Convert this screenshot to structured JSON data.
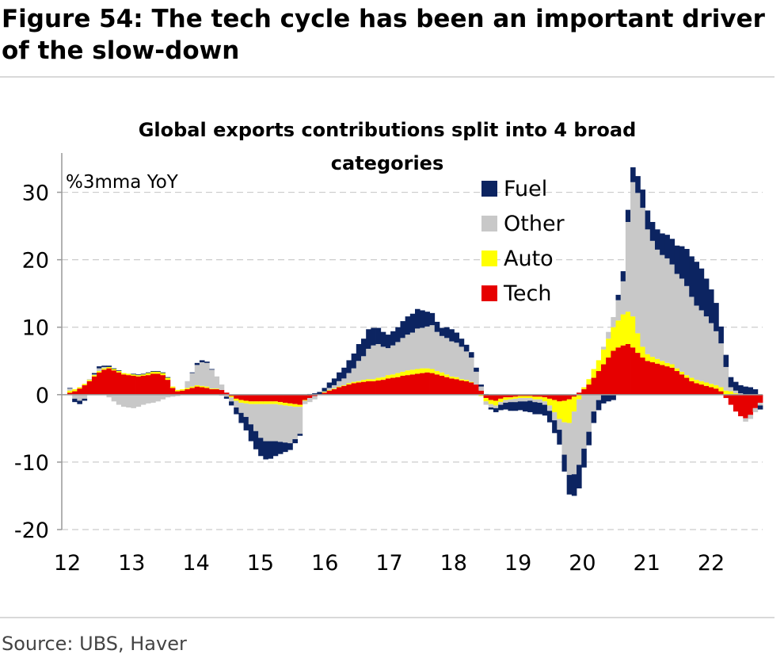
{
  "figure": {
    "title": "Figure 54: The tech cycle has been an important driver of the slow-down",
    "source": "Source: UBS, Haver"
  },
  "chart_data": {
    "type": "bar",
    "stacked": true,
    "title": "Global exports contributions split into 4  broad categories",
    "ylabel": "%3mma YoY",
    "xlabel": "",
    "ylim": [
      -20,
      35
    ],
    "yticks": [
      30,
      20,
      10,
      0,
      -10,
      -20
    ],
    "grid": true,
    "legend_position": "top-right",
    "colors": {
      "Fuel": "#0c2461",
      "Other": "#c8c8c8",
      "Auto": "#ffff00",
      "Tech": "#e60000"
    },
    "x_tick_labels": [
      "12",
      "13",
      "14",
      "15",
      "16",
      "17",
      "18",
      "19",
      "20",
      "21",
      "22"
    ],
    "x_start_year": 2012,
    "x_end": "2022-10",
    "series": [
      {
        "name": "Tech",
        "values": [
          0.3,
          0.5,
          0.9,
          1.4,
          2.0,
          2.7,
          3.3,
          3.7,
          3.9,
          3.6,
          3.3,
          3.0,
          2.9,
          2.8,
          2.7,
          2.8,
          2.9,
          3.1,
          3.1,
          2.9,
          2.2,
          1.0,
          0.5,
          0.6,
          0.8,
          1.0,
          1.2,
          1.1,
          1.0,
          0.8,
          0.8,
          0.7,
          0.3,
          -0.2,
          -0.6,
          -0.8,
          -0.9,
          -1.0,
          -1.0,
          -1.0,
          -1.0,
          -1.0,
          -1.0,
          -1.1,
          -1.2,
          -1.3,
          -1.4,
          -1.5,
          -0.8,
          -0.5,
          -0.2,
          0.1,
          0.3,
          0.6,
          0.8,
          1.1,
          1.3,
          1.5,
          1.7,
          1.8,
          1.9,
          2.0,
          2.0,
          2.1,
          2.2,
          2.4,
          2.5,
          2.6,
          2.8,
          2.9,
          3.0,
          3.1,
          3.2,
          3.3,
          3.2,
          3.0,
          2.8,
          2.6,
          2.4,
          2.3,
          2.1,
          2.0,
          1.8,
          1.5,
          0.6,
          -0.5,
          -0.8,
          -0.9,
          -0.6,
          -0.4,
          -0.4,
          -0.3,
          -0.2,
          -0.2,
          -0.2,
          -0.3,
          -0.3,
          -0.4,
          -0.6,
          -0.8,
          -1.0,
          -0.9,
          -0.7,
          -0.3,
          0.3,
          0.8,
          1.5,
          2.5,
          3.5,
          4.5,
          5.5,
          6.5,
          7.0,
          7.3,
          7.5,
          7.0,
          6.2,
          5.5,
          5.0,
          4.8,
          4.6,
          4.4,
          4.2,
          4.0,
          3.5,
          3.0,
          2.5,
          2.0,
          1.7,
          1.5,
          1.3,
          1.1,
          0.9,
          0.5,
          -0.5,
          -1.5,
          -2.5,
          -3.2,
          -3.5,
          -3.0,
          -2.0,
          -1.2
        ]
      },
      {
        "name": "Auto",
        "values": [
          0.3,
          0.3,
          0.2,
          0.2,
          0.2,
          0.2,
          0.2,
          0.2,
          0.2,
          0.2,
          0.2,
          0.2,
          0.2,
          0.2,
          0.2,
          0.2,
          0.3,
          0.3,
          0.3,
          0.3,
          0.3,
          0.2,
          0.2,
          0.2,
          0.2,
          0.2,
          0.2,
          0.2,
          0.2,
          0.1,
          0.1,
          0.0,
          -0.1,
          -0.2,
          -0.3,
          -0.4,
          -0.4,
          -0.4,
          -0.4,
          -0.4,
          -0.4,
          -0.4,
          -0.4,
          -0.4,
          -0.4,
          -0.4,
          -0.4,
          -0.3,
          -0.1,
          0.0,
          0.0,
          0.0,
          0.1,
          0.1,
          0.1,
          0.1,
          0.1,
          0.2,
          0.2,
          0.2,
          0.3,
          0.3,
          0.3,
          0.4,
          0.4,
          0.5,
          0.5,
          0.6,
          0.6,
          0.7,
          0.7,
          0.7,
          0.7,
          0.6,
          0.6,
          0.5,
          0.5,
          0.4,
          0.3,
          0.3,
          0.2,
          0.2,
          0.1,
          0.0,
          -0.2,
          -0.5,
          -0.6,
          -0.7,
          -0.5,
          -0.4,
          -0.3,
          -0.3,
          -0.3,
          -0.3,
          -0.3,
          -0.4,
          -0.4,
          -0.6,
          -1.0,
          -1.8,
          -2.6,
          -3.2,
          -3.5,
          -2.2,
          -0.7,
          0.3,
          0.8,
          1.3,
          1.6,
          2.2,
          2.8,
          3.5,
          4.0,
          4.6,
          4.8,
          4.6,
          2.9,
          1.6,
          1.0,
          0.8,
          0.7,
          0.6,
          0.5,
          0.5,
          0.4,
          0.4,
          0.4,
          0.5,
          0.5,
          0.5,
          0.5,
          0.5,
          0.5,
          0.6,
          0.6,
          0.5,
          0.2,
          0.0,
          0.0,
          0.0,
          0.0,
          0.0,
          0.0
        ]
      },
      {
        "name": "Other",
        "values": [
          0.3,
          -0.6,
          -0.9,
          -0.6,
          0.1,
          0.1,
          0.4,
          0.2,
          -0.4,
          -1.0,
          -1.5,
          -1.8,
          -1.9,
          -2.0,
          -1.8,
          -1.5,
          -1.3,
          -1.2,
          -1.0,
          -0.7,
          -0.4,
          -0.3,
          -0.2,
          0.0,
          1.0,
          2.0,
          3.0,
          3.5,
          3.5,
          2.8,
          1.8,
          0.8,
          -0.2,
          -0.6,
          -1.0,
          -1.5,
          -2.0,
          -3.0,
          -4.0,
          -5.0,
          -5.5,
          -5.5,
          -5.5,
          -5.5,
          -5.5,
          -5.5,
          -4.8,
          -4.0,
          -0.5,
          -0.6,
          -0.5,
          0.0,
          0.1,
          0.3,
          0.5,
          0.8,
          1.0,
          1.5,
          2.0,
          3.0,
          3.5,
          4.5,
          5.0,
          5.0,
          4.5,
          4.0,
          4.3,
          4.6,
          5.0,
          5.3,
          5.5,
          6.0,
          6.0,
          6.2,
          6.5,
          5.8,
          5.4,
          5.4,
          5.2,
          5.1,
          4.8,
          4.2,
          3.6,
          1.9,
          0.6,
          -0.5,
          -0.5,
          -0.4,
          -0.4,
          -0.4,
          -0.4,
          -0.5,
          -0.5,
          -0.5,
          -0.4,
          -0.4,
          -0.5,
          -0.5,
          -0.8,
          -1.2,
          -1.6,
          -4.8,
          -7.7,
          -9.3,
          -9.7,
          -8.0,
          -5.5,
          -2.5,
          -0.8,
          0.4,
          1.0,
          1.5,
          3.0,
          4.9,
          13.3,
          19.9,
          20.8,
          20.6,
          18.5,
          17.2,
          16.2,
          15.7,
          15.5,
          14.8,
          14.0,
          13.8,
          13.2,
          12.0,
          11.0,
          10.5,
          9.8,
          9.0,
          8.0,
          6.5,
          3.5,
          0.6,
          0.4,
          0.2,
          -0.5,
          -0.6,
          -0.6,
          -0.4
        ]
      },
      {
        "name": "Fuel",
        "values": [
          0.1,
          -0.5,
          -0.5,
          -0.3,
          0.0,
          0.2,
          0.3,
          0.2,
          0.2,
          0.1,
          0.1,
          0.0,
          0.0,
          0.1,
          0.1,
          0.1,
          0.1,
          0.1,
          0.1,
          0.1,
          0.1,
          0.0,
          0.0,
          0.0,
          0.0,
          0.1,
          0.3,
          0.3,
          0.2,
          0.1,
          0.0,
          -0.1,
          -0.3,
          -0.6,
          -1.0,
          -1.5,
          -2.0,
          -2.5,
          -2.7,
          -2.7,
          -2.7,
          -2.6,
          -2.2,
          -1.8,
          -1.4,
          -1.0,
          -0.6,
          -0.3,
          0.0,
          0.1,
          0.2,
          0.3,
          0.5,
          0.8,
          1.0,
          1.3,
          1.6,
          1.9,
          2.2,
          2.5,
          2.6,
          2.9,
          2.6,
          2.4,
          2.2,
          2.0,
          2.1,
          2.2,
          2.5,
          2.7,
          2.8,
          2.9,
          2.6,
          2.2,
          1.8,
          1.5,
          1.2,
          1.6,
          1.8,
          1.5,
          1.2,
          1.0,
          0.8,
          0.6,
          0.3,
          0.1,
          -0.3,
          -0.6,
          -0.8,
          -1.0,
          -1.3,
          -1.3,
          -1.3,
          -1.5,
          -1.7,
          -1.8,
          -1.7,
          -1.6,
          -1.7,
          -1.9,
          -2.2,
          -2.5,
          -2.9,
          -3.2,
          -3.5,
          -2.8,
          -2.0,
          -1.7,
          -1.5,
          -1.3,
          -1.0,
          -0.8,
          0.8,
          1.5,
          1.8,
          2.2,
          2.5,
          2.7,
          2.8,
          2.8,
          3.0,
          3.2,
          3.5,
          3.8,
          4.2,
          4.8,
          5.5,
          6.0,
          6.5,
          6.2,
          5.6,
          5.0,
          4.2,
          2.5,
          1.8,
          1.5,
          1.3,
          1.2,
          1.2,
          1.1,
          0.8,
          -0.6
        ]
      }
    ]
  }
}
